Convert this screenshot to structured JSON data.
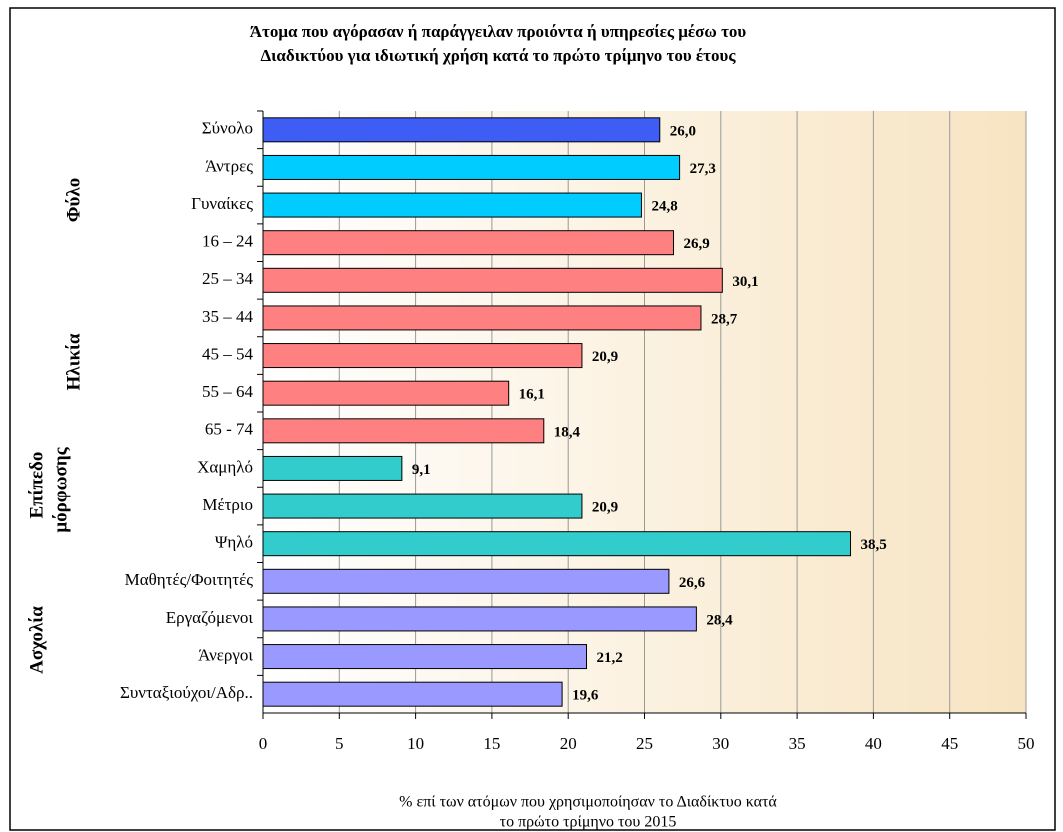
{
  "chart_data": {
    "type": "bar",
    "orientation": "horizontal",
    "title": [
      "Άτομα που αγόρασαν ή παράγγειλαν προιόντα ή υπηρεσίες μέσω του",
      "Διαδικτύου για ιδιωτική χρήση κατά το πρώτο τρίμηνο του έτους"
    ],
    "categories": [
      "Σύνολο",
      "Άντρες",
      "Γυναίκες",
      "16 – 24",
      "25 – 34",
      "35 – 44",
      "45 – 54",
      "55 – 64",
      "65 - 74",
      "Χαμηλό",
      "Μέτριο",
      "Ψηλό",
      "Μαθητές/Φοιτητές",
      "Εργαζόμενοι",
      "Άνεργοι",
      "Συνταξιούχοι/Αδρ.."
    ],
    "values": [
      26.0,
      27.3,
      24.8,
      26.9,
      30.1,
      28.7,
      20.9,
      16.1,
      18.4,
      9.1,
      20.9,
      38.5,
      26.6,
      28.4,
      21.2,
      19.6
    ],
    "value_labels": [
      "26,0",
      "27,3",
      "24,8",
      "26,9",
      "30,1",
      "28,7",
      "20,9",
      "16,1",
      "18,4",
      "9,1",
      "20,9",
      "38,5",
      "26,6",
      "28,4",
      "21,2",
      "19,6"
    ],
    "colors": [
      "#3d5df5",
      "#00ccff",
      "#00ccff",
      "#ff8080",
      "#ff8080",
      "#ff8080",
      "#ff8080",
      "#ff8080",
      "#ff8080",
      "#33cccc",
      "#33cccc",
      "#33cccc",
      "#9999ff",
      "#9999ff",
      "#9999ff",
      "#9999ff"
    ],
    "group_labels": [
      "Φύλο",
      "Ηλικία",
      "Επίπεδο",
      "μόρφωσης",
      "Ασχολία"
    ],
    "xlim": [
      0,
      50
    ],
    "xticks": [
      0,
      5,
      10,
      15,
      20,
      25,
      30,
      35,
      40,
      45,
      50
    ],
    "x_label": [
      "% επί των ατόμων που χρησιμοποίησαν το Διαδίκτυο κατά",
      "το πρώτο τρίμηνο του 2015"
    ],
    "grid": true
  }
}
